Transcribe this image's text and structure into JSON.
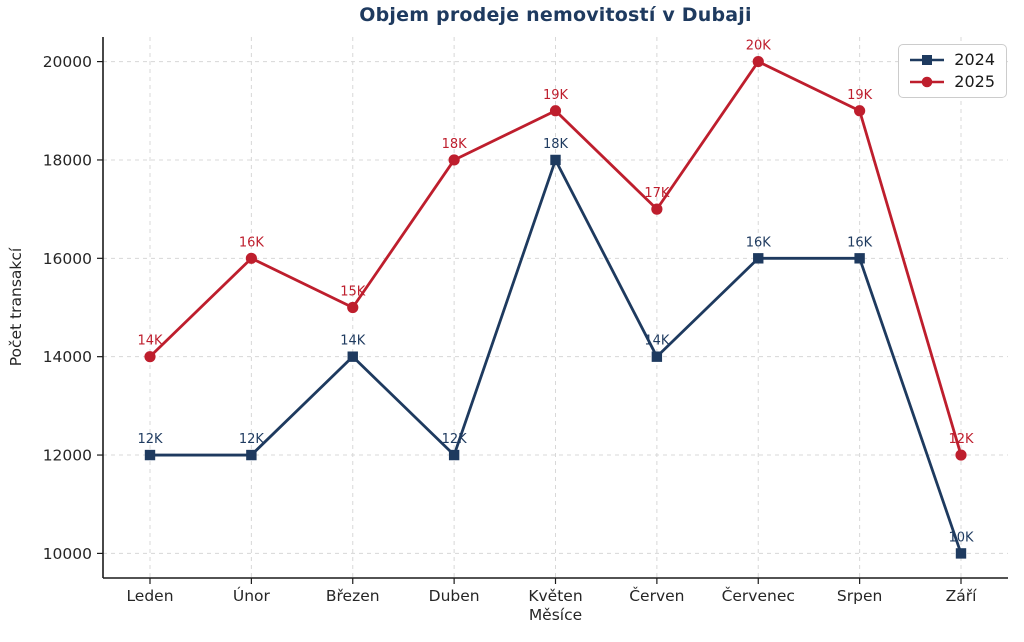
{
  "chart_data": {
    "type": "line",
    "title": "Objem prodeje nemovitostí v Dubaji",
    "xlabel": "Měsíce",
    "ylabel": "Počet transakcí",
    "categories": [
      "Leden",
      "Únor",
      "Březen",
      "Duben",
      "Květen",
      "Červen",
      "Červenec",
      "Srpen",
      "Září"
    ],
    "series": [
      {
        "name": "2024",
        "values": [
          12000,
          12000,
          14000,
          12000,
          18000,
          14000,
          16000,
          16000,
          10000
        ],
        "point_labels": [
          "12K",
          "12K",
          "14K",
          "12K",
          "18K",
          "14K",
          "16K",
          "16K",
          "10K"
        ],
        "color": "#1e3a5f",
        "marker": "square"
      },
      {
        "name": "2025",
        "values": [
          14000,
          16000,
          15000,
          18000,
          19000,
          17000,
          20000,
          19000,
          12000
        ],
        "point_labels": [
          "14K",
          "16K",
          "15K",
          "18K",
          "19K",
          "17K",
          "20K",
          "19K",
          "12K"
        ],
        "color": "#be1e2d",
        "marker": "circle"
      }
    ],
    "ylim": [
      9500,
      20500
    ],
    "yticks": [
      10000,
      12000,
      14000,
      16000,
      18000,
      20000
    ],
    "ytick_labels": [
      "10000",
      "12000",
      "14000",
      "16000",
      "18000",
      "20000"
    ],
    "grid": true,
    "grid_style": "dashed",
    "legend_position": "upper right"
  },
  "colors": {
    "title": "#1e3a5f",
    "grid": "#d8d8d8",
    "spine": "#1a1a1a",
    "tick_text": "#262626",
    "background": "#ffffff",
    "legend_border": "#cccccc"
  }
}
